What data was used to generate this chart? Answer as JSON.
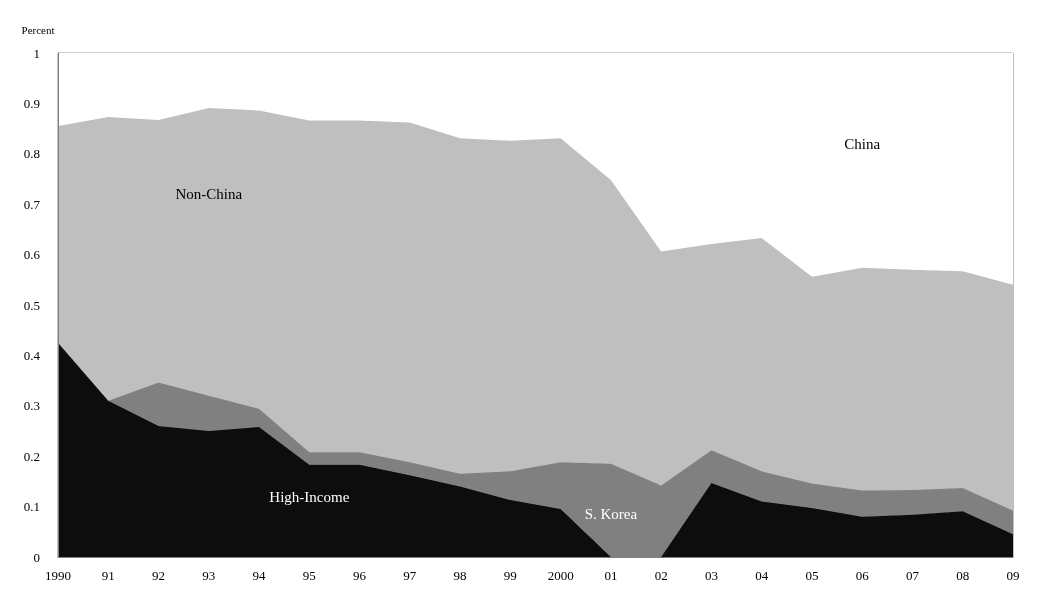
{
  "chart_data": {
    "type": "area",
    "stacked": true,
    "ylabel": "Percent",
    "categories": [
      "1990",
      "91",
      "92",
      "93",
      "94",
      "95",
      "96",
      "97",
      "98",
      "99",
      "2000",
      "01",
      "02",
      "03",
      "04",
      "05",
      "06",
      "07",
      "08",
      "09"
    ],
    "ylim": [
      0,
      1
    ],
    "yticks": [
      0,
      0.1,
      0.2,
      0.3,
      0.4,
      0.5,
      0.6,
      0.7,
      0.8,
      0.9,
      1
    ],
    "grid": false,
    "legend": false,
    "series": [
      {
        "name": "High-Income",
        "color": "#0d0d0d",
        "values": [
          0.425,
          0.31,
          0.26,
          0.25,
          0.258,
          0.183,
          0.183,
          0.162,
          0.14,
          0.113,
          0.095,
          0,
          0,
          0.147,
          0.11,
          0.097,
          0.08,
          0.084,
          0.091,
          0.045
        ]
      },
      {
        "name": "S. Korea",
        "color": "#808080",
        "values": [
          null,
          0,
          0.086,
          0.07,
          0.036,
          0.025,
          0.025,
          0.026,
          0.025,
          0.057,
          0.093,
          0.185,
          0.142,
          0.065,
          0.06,
          0.049,
          0.052,
          0.049,
          0.046,
          0.047
        ]
      },
      {
        "name": "Non-China",
        "color": "#bfbfbf",
        "values": [
          0.43,
          0.563,
          0.521,
          0.571,
          0.592,
          0.658,
          0.658,
          0.674,
          0.666,
          0.656,
          0.643,
          0.563,
          0.464,
          0.409,
          0.463,
          0.41,
          0.442,
          0.437,
          0.43,
          0.448
        ]
      },
      {
        "name": "China",
        "color": "#ffffff",
        "values": [
          0.145,
          0.127,
          0.133,
          0.109,
          0.114,
          0.134,
          0.134,
          0.138,
          0.169,
          0.174,
          0.169,
          0.252,
          0.394,
          0.379,
          0.367,
          0.444,
          0.426,
          0.43,
          0.433,
          0.46
        ]
      }
    ]
  }
}
